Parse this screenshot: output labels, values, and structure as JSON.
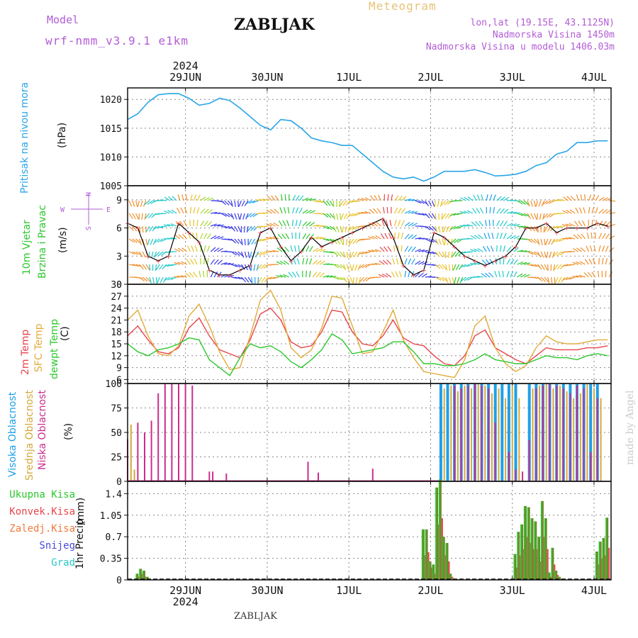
{
  "header": {
    "model_label": "Model",
    "model_name": "wrf-nmm_v3.9.1  e1km",
    "station_title": "ZABLJAK",
    "meteogram_label": "Meteogram",
    "lonlat": "lon,lat (19.15E, 43.1125N)",
    "elevation": "Nadmorska Visina 1450m",
    "elevation_model": "Nadmorska Visina u modelu 1406.03m"
  },
  "footer": {
    "station": "ZABLJAK",
    "credit": "made by Angel",
    "year": "2024"
  },
  "colors": {
    "pressure": "#2aa5e8",
    "temp2m": "#e8454b",
    "sfctemp": "#e3aa3a",
    "dewpt": "#2cc72c",
    "cloud_high": "#1ea0e8",
    "cloud_mid": "#d4a93a",
    "cloud_low": "#cc2c8e",
    "rain_total": "#2cc72c",
    "rain_conv": "#e8454b",
    "grid": "#888888"
  },
  "chart_data": [
    {
      "type": "line",
      "panel": "pressure",
      "ylabel_main": "Pritisak na nivou mora",
      "ylabel_unit": "(hPa)",
      "ylim": [
        1005,
        1022
      ],
      "yticks": [
        1005,
        1010,
        1015,
        1020
      ],
      "x_days": [
        "29JUN",
        "30JUN",
        "1JUL",
        "2JUL",
        "3JUL",
        "4JUL"
      ],
      "x": [
        0,
        3,
        6,
        9,
        12,
        15,
        18,
        21,
        24,
        27,
        30,
        33,
        36,
        39,
        42,
        45,
        48,
        51,
        54,
        57,
        60,
        63,
        66,
        69,
        72,
        75,
        78,
        81,
        84,
        87,
        90,
        93,
        96,
        99,
        102,
        105,
        108,
        111,
        114,
        117,
        120,
        123,
        126,
        129,
        132,
        135,
        138,
        141
      ],
      "values": [
        1016.5,
        1017.5,
        1019.5,
        1020.8,
        1021.0,
        1021.0,
        1020.2,
        1019.0,
        1019.3,
        1020.2,
        1019.8,
        1018.5,
        1017.0,
        1015.5,
        1014.7,
        1016.5,
        1016.3,
        1015.0,
        1013.3,
        1012.8,
        1012.5,
        1012.0,
        1012.0,
        1010.5,
        1009.0,
        1007.5,
        1006.5,
        1006.2,
        1006.5,
        1005.8,
        1006.5,
        1007.5,
        1007.5,
        1007.5,
        1007.8,
        1007.3,
        1006.7,
        1006.8,
        1007.0,
        1007.5,
        1008.5,
        1009.0,
        1010.5,
        1011.0,
        1012.5,
        1012.5,
        1012.8,
        1012.8
      ]
    },
    {
      "type": "line",
      "panel": "wind",
      "ylabel_main": "10m Vjetar",
      "ylabel_sub": "Brzina i Pravac",
      "ylabel_unit": "(m/s)",
      "compass": [
        "W",
        "E",
        "N",
        "S"
      ],
      "ylim": [
        0,
        10.5
      ],
      "yticks": [
        0,
        3,
        6,
        9
      ],
      "x": [
        0,
        3,
        6,
        9,
        12,
        15,
        18,
        21,
        24,
        27,
        30,
        33,
        36,
        39,
        42,
        45,
        48,
        51,
        54,
        57,
        60,
        63,
        66,
        69,
        72,
        75,
        78,
        81,
        84,
        87,
        90,
        93,
        96,
        99,
        102,
        105,
        108,
        111,
        114,
        117,
        120,
        123,
        126,
        129,
        132,
        135,
        138,
        141
      ],
      "values": [
        6.5,
        6.0,
        3.0,
        2.5,
        3.0,
        6.5,
        5.5,
        4.5,
        1.5,
        1.0,
        1.0,
        1.5,
        2.0,
        5.5,
        6.0,
        4.0,
        2.5,
        3.5,
        5.0,
        4.0,
        4.5,
        5.0,
        5.5,
        6.0,
        6.5,
        7.0,
        5.0,
        2.0,
        1.0,
        1.5,
        5.5,
        5.0,
        4.0,
        3.0,
        2.5,
        2.0,
        2.5,
        3.0,
        4.0,
        6.0,
        6.0,
        6.5,
        5.5,
        6.0,
        6.0,
        6.0,
        6.5,
        6.2
      ]
    },
    {
      "type": "line",
      "panel": "temperature",
      "ylabel_main": "2m Temp",
      "ylabel_sub": "SFC Temp",
      "ylabel_sub2": "dewpt Temp",
      "ylabel_unit": "(C)",
      "ylim": [
        5,
        30
      ],
      "yticks": [
        6,
        9,
        12,
        15,
        18,
        21,
        24,
        27,
        30
      ],
      "x": [
        0,
        3,
        6,
        9,
        12,
        15,
        18,
        21,
        24,
        27,
        30,
        33,
        36,
        39,
        42,
        45,
        48,
        51,
        54,
        57,
        60,
        63,
        66,
        69,
        72,
        75,
        78,
        81,
        84,
        87,
        90,
        93,
        96,
        99,
        102,
        105,
        108,
        111,
        114,
        117,
        120,
        123,
        126,
        129,
        132,
        135,
        138,
        141
      ],
      "series": [
        {
          "name": "2m Temp",
          "values": [
            17.0,
            19.5,
            16.0,
            13.0,
            12.5,
            14.0,
            19.0,
            21.5,
            17.0,
            13.5,
            12.5,
            11.5,
            16.0,
            22.5,
            24.0,
            21.0,
            15.5,
            14.0,
            14.5,
            18.0,
            23.5,
            23.0,
            18.0,
            15.0,
            14.5,
            17.0,
            21.0,
            16.5,
            15.0,
            14.5,
            12.0,
            10.0,
            9.5,
            12.0,
            17.0,
            18.5,
            14.0,
            12.5,
            11.0,
            10.0,
            12.0,
            14.0,
            13.5,
            13.5,
            13.5,
            14.0,
            14.0,
            14.5
          ]
        },
        {
          "name": "SFC Temp",
          "values": [
            21.0,
            23.5,
            17.0,
            12.5,
            12.0,
            14.5,
            22.0,
            25.0,
            19.5,
            13.0,
            8.5,
            9.0,
            17.0,
            26.0,
            28.5,
            23.5,
            14.0,
            11.5,
            13.5,
            19.0,
            27.0,
            26.5,
            19.5,
            12.5,
            13.0,
            18.0,
            23.5,
            16.0,
            11.5,
            8.0,
            7.5,
            7.0,
            6.5,
            11.0,
            19.5,
            22.0,
            14.0,
            10.0,
            8.0,
            9.5,
            14.0,
            17.0,
            15.5,
            15.0,
            15.0,
            15.5,
            16.0,
            16.0
          ]
        },
        {
          "name": "dewpt Temp",
          "values": [
            15.0,
            13.0,
            12.0,
            13.5,
            14.0,
            15.0,
            16.5,
            16.0,
            11.0,
            9.0,
            7.0,
            11.5,
            15.0,
            14.0,
            14.5,
            13.0,
            10.5,
            9.0,
            11.0,
            13.5,
            17.5,
            16.0,
            12.5,
            13.0,
            13.5,
            14.0,
            15.5,
            15.5,
            13.0,
            10.0,
            10.0,
            9.5,
            9.5,
            10.0,
            11.0,
            12.5,
            11.0,
            10.5,
            10.0,
            10.0,
            11.0,
            12.0,
            11.5,
            11.5,
            11.0,
            12.0,
            12.5,
            12.0
          ]
        }
      ]
    },
    {
      "type": "bar",
      "panel": "cloud",
      "ylabel_main": "Visoka Oblacnost",
      "ylabel_sub": "Srednja Oblacnost",
      "ylabel_sub2": "Niska Oblacnost",
      "ylabel_unit": "(%)",
      "ylim": [
        0,
        100
      ],
      "yticks": [
        0,
        25,
        50,
        75,
        100
      ],
      "series": [
        {
          "name": "Visoka Oblacnost",
          "x": [
            92,
            94,
            96,
            98,
            100,
            102,
            104,
            106,
            108,
            110,
            112,
            114,
            118,
            120,
            122,
            124,
            126,
            128,
            130,
            132,
            134,
            136,
            138
          ],
          "values": [
            100,
            100,
            100,
            100,
            100,
            100,
            100,
            100,
            100,
            100,
            100,
            100,
            100,
            100,
            100,
            100,
            100,
            100,
            100,
            100,
            100,
            100,
            100
          ]
        },
        {
          "name": "Srednja Oblacnost",
          "x": [
            1,
            2,
            93,
            95,
            97,
            99,
            101,
            103,
            105,
            107,
            109,
            111,
            113,
            115,
            119,
            121,
            123,
            125,
            127,
            129,
            131,
            133,
            135,
            137,
            139
          ],
          "values": [
            58,
            12,
            95,
            98,
            92,
            98,
            95,
            100,
            98,
            90,
            95,
            85,
            98,
            85,
            95,
            98,
            100,
            95,
            98,
            92,
            85,
            90,
            100,
            95,
            85
          ]
        },
        {
          "name": "Niska Oblacnost",
          "x": [
            0,
            3,
            5,
            7,
            9,
            11,
            13,
            15,
            17,
            19,
            24,
            25,
            29,
            53,
            56,
            72,
            96,
            98,
            100,
            102,
            104,
            106,
            108,
            112,
            114,
            116,
            118,
            120,
            122,
            124,
            126,
            128,
            130,
            132,
            134,
            136,
            138
          ],
          "values": [
            43,
            60,
            50,
            62,
            90,
            100,
            100,
            100,
            100,
            98,
            10,
            10,
            8,
            20,
            9,
            13,
            98,
            95,
            98,
            100,
            98,
            95,
            60,
            30,
            12,
            10,
            42,
            95,
            98,
            100,
            98,
            95,
            90,
            98,
            95,
            30,
            85
          ]
        }
      ]
    },
    {
      "type": "bar",
      "panel": "precip",
      "legend": [
        "Ukupna Kisa",
        "Konvek.Kisa",
        "Zaledj.Kisa",
        "Snijeg",
        "Grad"
      ],
      "ylabel_main": "1hr Precip",
      "ylabel_unit": "(mm)",
      "ylim": [
        0,
        1.6
      ],
      "yticks": [
        0,
        0.35,
        0.7,
        1.05,
        1.4
      ],
      "x": [
        3,
        4,
        5,
        6,
        87,
        88,
        89,
        90,
        91,
        92,
        93,
        94,
        95,
        96,
        97,
        98,
        114,
        115,
        116,
        117,
        118,
        119,
        120,
        121,
        122,
        123,
        124,
        125,
        126,
        127,
        128,
        138,
        139,
        140,
        141
      ],
      "series": [
        {
          "name": "Ukupna Kisa",
          "values": [
            0.1,
            0.18,
            0.15,
            0.05,
            0.82,
            0.82,
            0.3,
            0.25,
            1.5,
            1.63,
            0.7,
            0.6,
            0.1,
            0.02,
            0.01,
            0.01,
            0.42,
            0.78,
            0.9,
            1.2,
            1.18,
            1.0,
            0.95,
            0.7,
            1.28,
            1.0,
            0.12,
            0.52,
            0.15,
            0.05,
            0.02,
            0.46,
            0.62,
            0.68,
            1.01
          ]
        },
        {
          "name": "Konvek.Kisa",
          "values": [
            0.05,
            0.1,
            0.05,
            0.02,
            0.4,
            0.45,
            0.2,
            0.1,
            0.9,
            1.0,
            0.4,
            0.3,
            0.05,
            0.01,
            0.0,
            0.0,
            0.2,
            0.4,
            0.5,
            0.7,
            0.6,
            0.5,
            0.5,
            0.3,
            0.7,
            0.5,
            0.05,
            0.25,
            0.08,
            0.02,
            0.01,
            0.25,
            0.35,
            0.4,
            0.52
          ]
        }
      ]
    }
  ],
  "xaxis": {
    "days": [
      "29JUN",
      "30JUN",
      "1JUL",
      "2JUL",
      "3JUL",
      "4JUL"
    ]
  }
}
